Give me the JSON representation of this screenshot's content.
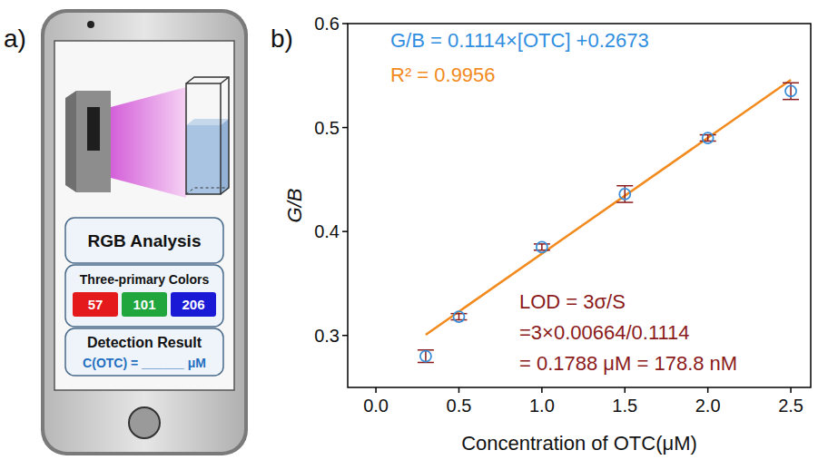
{
  "panel_a": {
    "label": "a)",
    "title": "RGB Analysis",
    "subtitle": "Three-primary Colors",
    "colors": [
      {
        "value": 57,
        "color": "#e3191c"
      },
      {
        "value": 101,
        "color": "#20a63c"
      },
      {
        "value": 206,
        "color": "#1a1ad6"
      }
    ],
    "result_title": "Detection Result",
    "result_text": "C(OTC) = ______ μM"
  },
  "panel_b": {
    "label": "b)"
  },
  "chart_data": {
    "type": "scatter",
    "x_label": "Concentration of OTC(μM)",
    "y_label": "G/B",
    "xlim": [
      -0.17,
      2.62
    ],
    "ylim": [
      0.25,
      0.6
    ],
    "xticks": [
      {
        "value": 0,
        "label": "0.0"
      },
      0.5,
      {
        "value": 1,
        "label": "1.0"
      },
      1.5,
      {
        "value": 2,
        "label": "2.0"
      },
      2.5
    ],
    "yticks": [
      0.3,
      0.4,
      0.5,
      0.6
    ],
    "series": [
      {
        "type": "scatter",
        "marker": "circle",
        "color": "#3a8fd8",
        "x": [
          0.3,
          0.5,
          1.0,
          1.5,
          2.0,
          2.5
        ],
        "values": [
          0.28,
          0.318,
          0.385,
          0.436,
          0.49,
          0.535
        ],
        "errors": [
          0.006,
          0.003,
          0.003,
          0.008,
          0.003,
          0.008
        ]
      },
      {
        "type": "line",
        "line_style": "solid",
        "color": "#f28a1d",
        "x": [
          0.3,
          2.5
        ],
        "values": [
          0.3007,
          0.5458
        ]
      }
    ],
    "annotations": [
      {
        "text": "G/B = 0.1114×[OTC] +0.2673"
      },
      {
        "text": "R² = 0.9956"
      },
      {
        "text": "LOD = 3σ/S"
      },
      {
        "text": "=3×0.00664/0.1114"
      },
      {
        "text": "= 0.1788 μM = 178.8 nM"
      }
    ]
  }
}
